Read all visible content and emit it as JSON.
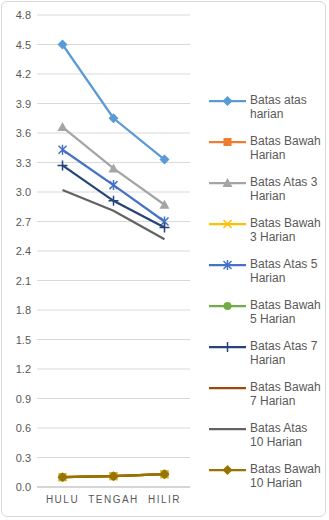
{
  "chart_data": {
    "type": "line",
    "categories": [
      "HULU",
      "TENGAH",
      "HILIR"
    ],
    "ylim": [
      0,
      4.8
    ],
    "yticks": [
      {
        "value": 0,
        "label": "0.0"
      },
      0.3,
      0.6,
      0.9,
      1.2,
      1.5,
      1.8,
      2.1,
      2.4,
      2.7,
      {
        "value": 3,
        "label": "3.0"
      },
      3.3,
      3.6,
      3.9,
      4.2,
      4.5,
      4.8
    ],
    "grid": true,
    "legend": "right",
    "series": [
      {
        "name": "Batas atas harian",
        "color": "#5b9bd5",
        "marker": "diamond",
        "values": [
          4.5,
          3.75,
          3.33
        ]
      },
      {
        "name": "Batas Bawah Harian",
        "color": "#ed7d31",
        "marker": "square",
        "values": [
          0.1,
          0.11,
          0.13
        ]
      },
      {
        "name": "Batas Atas 3 Harian",
        "color": "#a5a5a5",
        "marker": "triangle",
        "values": [
          3.66,
          3.24,
          2.87
        ]
      },
      {
        "name": "Batas Bawah 3 Harian",
        "color": "#ffc000",
        "marker": "x",
        "values": [
          0.1,
          0.11,
          0.13
        ]
      },
      {
        "name": "Batas Atas 5 Harian",
        "color": "#4472c4",
        "marker": "star",
        "values": [
          3.43,
          3.07,
          2.7
        ]
      },
      {
        "name": "Batas Bawah 5 Harian",
        "color": "#70ad47",
        "marker": "circle",
        "values": [
          0.1,
          0.11,
          0.13
        ]
      },
      {
        "name": "Batas Atas 7 Harian",
        "color": "#264478",
        "marker": "plus",
        "values": [
          3.27,
          2.91,
          2.64
        ]
      },
      {
        "name": "Batas Bawah 7 Harian",
        "color": "#9e480e",
        "marker": "none",
        "values": [
          0.1,
          0.11,
          0.13
        ]
      },
      {
        "name": "Batas Atas 10 Harian",
        "color": "#636363",
        "marker": "none",
        "values": [
          3.02,
          2.81,
          2.52
        ]
      },
      {
        "name": "Batas Bawah 10 Harian",
        "color": "#997300",
        "marker": "diamond",
        "values": [
          0.1,
          0.11,
          0.13
        ]
      }
    ]
  }
}
